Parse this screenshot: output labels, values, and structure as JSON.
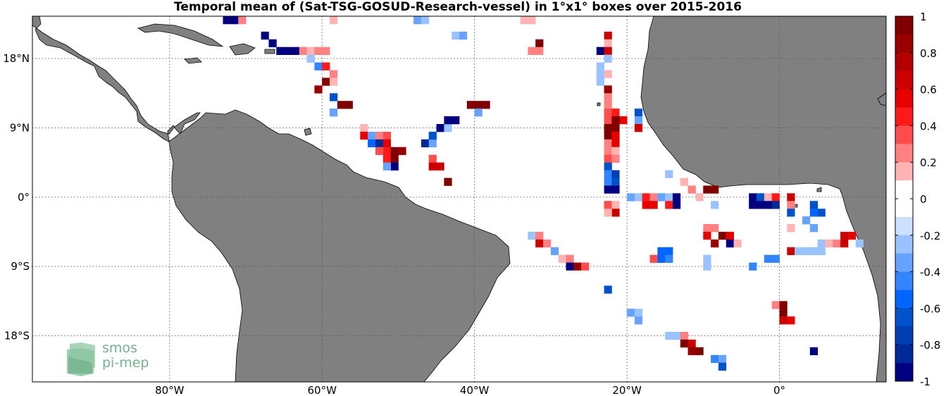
{
  "title": "Temporal mean of (Sat-TSG-GOSUD-Research-vessel) in 1°x1° boxes over 2015-2016",
  "map": {
    "lon_range": [
      -98,
      14
    ],
    "lat_range": [
      -24,
      23.5
    ],
    "land_color": "#808080",
    "ocean_color": "#ffffff",
    "lon_ticks": [
      {
        "value": -80,
        "label": "80°W"
      },
      {
        "value": -60,
        "label": "60°W"
      },
      {
        "value": -40,
        "label": "40°W"
      },
      {
        "value": -20,
        "label": "20°W"
      },
      {
        "value": 0,
        "label": "0°"
      }
    ],
    "lat_ticks": [
      {
        "value": 18,
        "label": "18°N"
      },
      {
        "value": 9,
        "label": "9°N"
      },
      {
        "value": 0,
        "label": "0°"
      },
      {
        "value": -9,
        "label": "9°S"
      },
      {
        "value": -18,
        "label": "18°S"
      }
    ],
    "cells": [
      [
        -73,
        23,
        -1
      ],
      [
        -72,
        23,
        -1
      ],
      [
        -71,
        23,
        0.3
      ],
      [
        -59,
        23,
        0.2
      ],
      [
        -34,
        23,
        0.2
      ],
      [
        -33,
        23,
        0.2
      ],
      [
        -68,
        21,
        -1
      ],
      [
        -67,
        20,
        -1
      ],
      [
        -66,
        19,
        -1
      ],
      [
        -65,
        19,
        -1
      ],
      [
        -64,
        19,
        -1
      ],
      [
        -63,
        19,
        0.3
      ],
      [
        -62,
        19,
        0.2
      ],
      [
        -61,
        19,
        0.3
      ],
      [
        -60,
        19,
        0.3
      ],
      [
        -62,
        18,
        -0.2
      ],
      [
        -61,
        17,
        -0.4
      ],
      [
        -60,
        17,
        0.5
      ],
      [
        -59,
        16,
        0.3
      ],
      [
        -60,
        15,
        0.9
      ],
      [
        -59,
        15,
        0.2
      ],
      [
        -61,
        14,
        0.8
      ],
      [
        -59,
        13,
        -0.6
      ],
      [
        -58,
        12,
        0.9
      ],
      [
        -57,
        12,
        1
      ],
      [
        -59,
        11,
        -0.3
      ],
      [
        -55,
        9,
        0.2
      ],
      [
        -55,
        8,
        0.6
      ],
      [
        -54,
        8,
        -0.3
      ],
      [
        -53,
        8,
        0.3
      ],
      [
        -52,
        8,
        0.4
      ],
      [
        -54,
        7,
        -0.5
      ],
      [
        -53,
        7,
        -0.8
      ],
      [
        -52,
        7,
        0.6
      ],
      [
        -52,
        6,
        0.5
      ],
      [
        -51,
        6,
        1
      ],
      [
        -50,
        6,
        0.8
      ],
      [
        -53,
        6,
        0.4
      ],
      [
        -52,
        5,
        0.5
      ],
      [
        -51,
        5,
        0.9
      ],
      [
        -51,
        4,
        -1
      ],
      [
        -52,
        4,
        -0.3
      ],
      [
        -47,
        7,
        -0.8
      ],
      [
        -46,
        7,
        -0.3
      ],
      [
        -46,
        8,
        -0.6
      ],
      [
        -45,
        9,
        -0.9
      ],
      [
        -44,
        9,
        -0.2
      ],
      [
        -43,
        10,
        -1
      ],
      [
        -44,
        10,
        -1
      ],
      [
        -40,
        12,
        1
      ],
      [
        -39,
        12,
        0.9
      ],
      [
        -41,
        12,
        1
      ],
      [
        -40,
        11,
        -0.3
      ],
      [
        -46,
        5,
        0.4
      ],
      [
        -45,
        4,
        0.7
      ],
      [
        -46,
        4,
        0.7
      ],
      [
        -44,
        2,
        1
      ],
      [
        -48,
        23,
        -0.3
      ],
      [
        -47,
        23,
        -0.2
      ],
      [
        -43,
        21,
        -0.2
      ],
      [
        -42,
        21,
        -0.3
      ],
      [
        -32,
        20,
        1
      ],
      [
        -33,
        19,
        0.3
      ],
      [
        -32,
        19,
        0.3
      ],
      [
        -23,
        21,
        0.7
      ],
      [
        -23,
        20,
        0.2
      ],
      [
        -24,
        19,
        -0.9
      ],
      [
        -23,
        19,
        0.7
      ],
      [
        -23,
        18,
        -0.2
      ],
      [
        -24,
        17,
        -0.2
      ],
      [
        -24,
        16,
        -0.2
      ],
      [
        -23,
        16,
        0.2
      ],
      [
        -24,
        15,
        -0.2
      ],
      [
        -23,
        14,
        0.8
      ],
      [
        -23,
        13,
        0.3
      ],
      [
        -23,
        12,
        0.3
      ],
      [
        -23,
        11,
        0.4
      ],
      [
        -22,
        11,
        0.5
      ],
      [
        -21,
        10,
        0.6
      ],
      [
        -23,
        10,
        0.4
      ],
      [
        -22,
        10,
        1
      ],
      [
        -23,
        9,
        0.9
      ],
      [
        -22,
        9,
        1
      ],
      [
        -23,
        8,
        0.9
      ],
      [
        -22,
        8,
        0.6
      ],
      [
        -23,
        7,
        0.3
      ],
      [
        -22,
        7,
        0.6
      ],
      [
        -23,
        6,
        0.3
      ],
      [
        -22,
        6,
        0.2
      ],
      [
        -23,
        5,
        0.4
      ],
      [
        -22,
        5,
        0.3
      ],
      [
        -23,
        4,
        -0.6
      ],
      [
        -23,
        3,
        -0.4
      ],
      [
        -22,
        3,
        -0.7
      ],
      [
        -23,
        2,
        -0.4
      ],
      [
        -22,
        2,
        -0.6
      ],
      [
        -23,
        1,
        -1
      ],
      [
        -22,
        1,
        -1
      ],
      [
        -19,
        11,
        -0.6
      ],
      [
        -19,
        10,
        -0.3
      ],
      [
        -19,
        9,
        0.7
      ],
      [
        -23,
        -1,
        0.4
      ],
      [
        -22,
        -1,
        0.2
      ],
      [
        -22,
        -2,
        0.7
      ],
      [
        -23,
        -2,
        0.2
      ],
      [
        -20,
        0,
        -0.3
      ],
      [
        -19,
        0,
        -0.2
      ],
      [
        -18,
        0,
        0.5
      ],
      [
        -17,
        0,
        0.3
      ],
      [
        -16,
        0,
        -0.3
      ],
      [
        -15,
        0,
        -0.2
      ],
      [
        -14,
        0,
        -1
      ],
      [
        -18,
        -1,
        0.6
      ],
      [
        -17,
        -1,
        0.6
      ],
      [
        -15,
        -1,
        0.5
      ],
      [
        -14,
        -1,
        -1
      ],
      [
        -15,
        3,
        -0.2
      ],
      [
        -13,
        2,
        0.2
      ],
      [
        -12,
        1,
        0.3
      ],
      [
        -10,
        1,
        0.9
      ],
      [
        -9,
        1,
        0.9
      ],
      [
        -11,
        0,
        0.2
      ],
      [
        -9,
        -1,
        -0.2
      ],
      [
        -4,
        0,
        -0.9
      ],
      [
        -3,
        0,
        -0.6
      ],
      [
        -2,
        0,
        0.2
      ],
      [
        -1,
        0,
        0.5
      ],
      [
        1,
        0,
        0.7
      ],
      [
        -4,
        -1,
        -0.9
      ],
      [
        -3,
        -1,
        -1
      ],
      [
        -2,
        -1,
        -0.9
      ],
      [
        -1,
        -1,
        -0.8
      ],
      [
        1,
        -1,
        0.3
      ],
      [
        1,
        -2,
        -0.6
      ],
      [
        4,
        -1,
        -0.6
      ],
      [
        4,
        -2,
        -0.5
      ],
      [
        5,
        -2,
        -0.6
      ],
      [
        3,
        -3,
        -0.3
      ],
      [
        4,
        -4,
        -0.3
      ],
      [
        1,
        -4,
        0.2
      ],
      [
        -10,
        -4,
        0.3
      ],
      [
        -9,
        -4,
        0.3
      ],
      [
        -10,
        -5,
        0.6
      ],
      [
        -8,
        -5,
        0.9
      ],
      [
        -7,
        -5,
        0.6
      ],
      [
        -9,
        -6,
        0.8
      ],
      [
        -7,
        -6,
        -0.9
      ],
      [
        -6,
        -6,
        0.2
      ],
      [
        -33,
        -5,
        -0.2
      ],
      [
        -32,
        -5,
        0.3
      ],
      [
        -32,
        -6,
        0.7
      ],
      [
        -31,
        -6,
        0.3
      ],
      [
        -30,
        -7,
        -0.3
      ],
      [
        -29,
        -8,
        0.2
      ],
      [
        -28,
        -8,
        0.3
      ],
      [
        -28,
        -9,
        -0.9
      ],
      [
        -27,
        -9,
        0.8
      ],
      [
        -26,
        -9,
        0.4
      ],
      [
        -16,
        -7,
        -0.5
      ],
      [
        -15,
        -7,
        -0.5
      ],
      [
        -17,
        -8,
        0.4
      ],
      [
        -16,
        -8,
        -0.5
      ],
      [
        -15,
        -8,
        -0.4
      ],
      [
        -10,
        -8,
        -0.2
      ],
      [
        -10,
        -9,
        -0.2
      ],
      [
        -2,
        -8,
        -0.4
      ],
      [
        -1,
        -8,
        -0.4
      ],
      [
        -4,
        -9,
        -0.4
      ],
      [
        1,
        -7,
        0.7
      ],
      [
        2,
        -7,
        -0.2
      ],
      [
        3,
        -7,
        -0.2
      ],
      [
        4,
        -7,
        -0.2
      ],
      [
        5,
        -7,
        -0.2
      ],
      [
        5,
        -6,
        -0.2
      ],
      [
        6,
        -6,
        0.2
      ],
      [
        7,
        -6,
        0.3
      ],
      [
        8,
        -6,
        0.7
      ],
      [
        8,
        -5,
        0.7
      ],
      [
        9,
        -5,
        0.6
      ],
      [
        10,
        -6,
        -0.2
      ],
      [
        -23,
        -12,
        -0.6
      ],
      [
        -1,
        -14,
        0.3
      ],
      [
        0,
        -14,
        1
      ],
      [
        0,
        -15,
        0.9
      ],
      [
        -20,
        -15,
        -0.3
      ],
      [
        -19,
        -15,
        -0.2
      ],
      [
        -19,
        -16,
        -0.3
      ],
      [
        0,
        -16,
        0.7
      ],
      [
        1,
        -16,
        0.6
      ],
      [
        -15,
        -18,
        -0.2
      ],
      [
        -14,
        -18,
        -0.2
      ],
      [
        -13,
        -18,
        0.3
      ],
      [
        -13,
        -19,
        0.9
      ],
      [
        -12,
        -19,
        0.7
      ],
      [
        -12,
        -20,
        0.8
      ],
      [
        -11,
        -20,
        0.9
      ],
      [
        -9,
        -21,
        -0.4
      ],
      [
        -8,
        -21,
        -0.3
      ],
      [
        -8,
        -22,
        -0.6
      ],
      [
        4,
        -20,
        -1
      ]
    ]
  },
  "colorbar": {
    "min": -1,
    "max": 1,
    "tick_labels": [
      "1",
      "0.8",
      "0.6",
      "0.4",
      "0.2",
      "0",
      "-0.2",
      "-0.4",
      "-0.6",
      "-0.8",
      "-1"
    ],
    "colors": [
      "#800000",
      "#990000",
      "#b30000",
      "#cc0000",
      "#e60000",
      "#ff1a1a",
      "#ff4d4d",
      "#ff8080",
      "#ffb3b3",
      "#ffffff",
      "#ffffff",
      "#cce0ff",
      "#99c2ff",
      "#66a3ff",
      "#3385ff",
      "#0066ff",
      "#0052cc",
      "#003db3",
      "#002999",
      "#000080"
    ]
  },
  "logo": {
    "line1": "smos",
    "line2": "pi-mep"
  }
}
